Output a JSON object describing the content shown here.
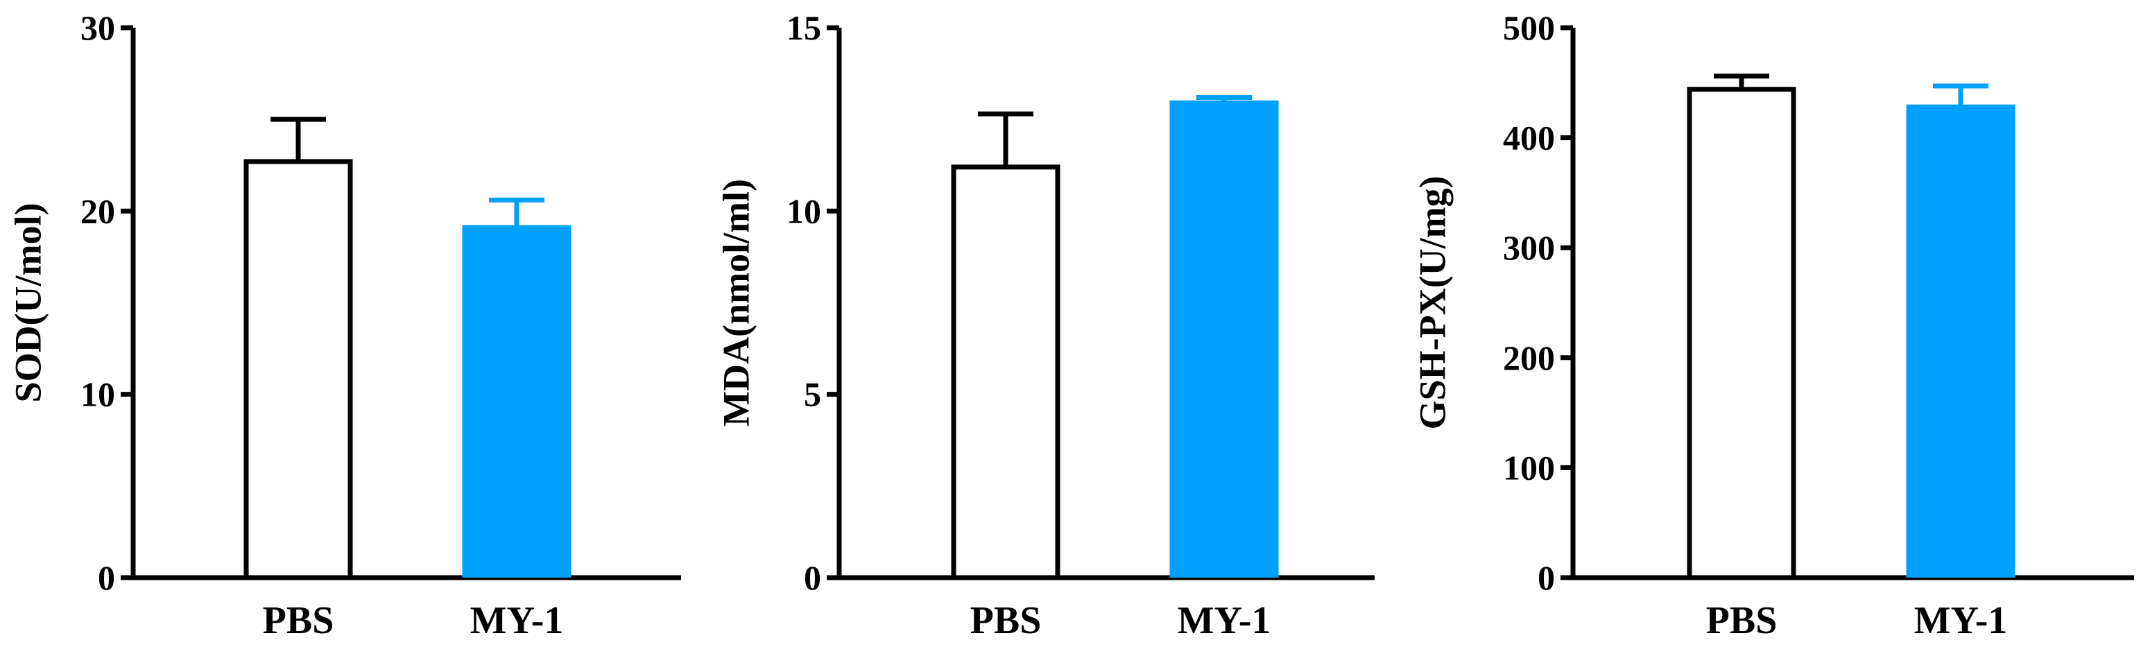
{
  "colors": {
    "pbs_fill": "#ffffff",
    "my1_fill": "#00a0ff",
    "axis": "#000000"
  },
  "chart_data": [
    {
      "type": "bar",
      "ylabel": "SOD(U/mol)",
      "categories": [
        "PBS",
        "MY-1"
      ],
      "values": [
        22.7,
        19.1
      ],
      "errors": [
        2.3,
        1.5
      ],
      "ylim": [
        0,
        30
      ],
      "yticks": [
        0,
        10,
        20,
        30
      ],
      "grid": false
    },
    {
      "type": "bar",
      "ylabel": "MDA(nmol/ml)",
      "categories": [
        "PBS",
        "MY-1"
      ],
      "values": [
        11.2,
        12.95
      ],
      "errors": [
        1.45,
        0.15
      ],
      "ylim": [
        0,
        15
      ],
      "yticks": [
        0,
        5,
        10,
        15
      ],
      "grid": false
    },
    {
      "type": "bar",
      "ylabel": "GSH-PX(U/mg)",
      "categories": [
        "PBS",
        "MY-1"
      ],
      "values": [
        444,
        428
      ],
      "errors": [
        12,
        19
      ],
      "ylim": [
        0,
        500
      ],
      "yticks": [
        0,
        100,
        200,
        300,
        400,
        500
      ],
      "grid": false
    }
  ]
}
